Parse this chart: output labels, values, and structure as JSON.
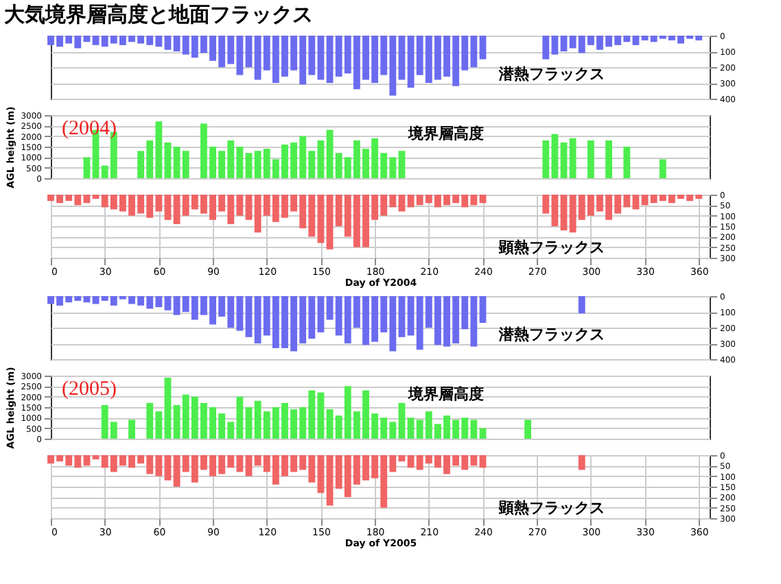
{
  "chart_data": [
    {
      "type": "bar",
      "title": "大気境界層高度と地面フラックス",
      "tick_labels": "y2",
      "grid": true,
      "x": [
        0,
        5,
        10,
        15,
        20,
        25,
        30,
        35,
        40,
        45,
        50,
        55,
        60,
        65,
        70,
        75,
        80,
        85,
        90,
        95,
        100,
        105,
        110,
        115,
        120,
        125,
        130,
        135,
        140,
        145,
        150,
        155,
        160,
        165,
        170,
        175,
        180,
        185,
        190,
        195,
        200,
        205,
        210,
        215,
        220,
        225,
        230,
        235,
        240,
        245,
        250,
        255,
        260,
        265,
        270,
        275,
        280,
        285,
        290,
        295,
        300,
        305,
        310,
        315,
        320,
        325,
        330,
        335,
        340,
        345,
        350,
        355,
        360
      ],
      "xlim": [
        0,
        366
      ],
      "y2lim": [
        400,
        0
      ],
      "y2ticks": [
        0,
        100,
        200,
        300,
        400
      ],
      "series": [
        {
          "name": "潜熱フラックス",
          "axis": "y2",
          "color": "#6b6bf0",
          "values": [
            60,
            70,
            50,
            80,
            40,
            60,
            70,
            50,
            60,
            40,
            50,
            60,
            70,
            90,
            100,
            120,
            140,
            110,
            160,
            200,
            180,
            250,
            200,
            280,
            220,
            300,
            260,
            220,
            310,
            250,
            280,
            300,
            260,
            240,
            340,
            280,
            300,
            250,
            380,
            280,
            330,
            250,
            300,
            280,
            260,
            320,
            220,
            200,
            150,
            null,
            null,
            null,
            null,
            null,
            null,
            150,
            120,
            100,
            80,
            110,
            60,
            90,
            70,
            60,
            40,
            60,
            30,
            40,
            20,
            30,
            50,
            20,
            30
          ]
        }
      ]
    },
    {
      "type": "bar",
      "ylabel": "AGL height (m)",
      "annotations": [
        "(2004)"
      ],
      "tick_labels": "y",
      "grid": true,
      "x": [
        20,
        25,
        30,
        35,
        40,
        45,
        50,
        55,
        60,
        65,
        70,
        75,
        80,
        85,
        90,
        95,
        100,
        105,
        110,
        115,
        120,
        125,
        130,
        135,
        140,
        145,
        150,
        155,
        160,
        165,
        170,
        175,
        180,
        185,
        190,
        195,
        200,
        205,
        210,
        215,
        220,
        225,
        230,
        235,
        240,
        245,
        250,
        255,
        260,
        265,
        270,
        275,
        280,
        285,
        290,
        295,
        300,
        305,
        310,
        315,
        320,
        325,
        330,
        335,
        340
      ],
      "xlim": [
        0,
        366
      ],
      "ylim": [
        0,
        3000
      ],
      "yticks": [
        0,
        500,
        1000,
        1500,
        2000,
        2500,
        3000
      ],
      "series": [
        {
          "name": "境界層高度",
          "axis": "y",
          "color": "#4ded4d",
          "values": [
            1000,
            2300,
            600,
            2200,
            null,
            null,
            1300,
            1800,
            2700,
            1700,
            1500,
            1300,
            null,
            2600,
            1500,
            1300,
            1800,
            1500,
            1200,
            1300,
            1400,
            900,
            1600,
            1700,
            2000,
            1300,
            1800,
            2300,
            1200,
            1000,
            1800,
            1400,
            1900,
            1200,
            1000,
            1300,
            null,
            null,
            null,
            null,
            null,
            null,
            null,
            null,
            null,
            null,
            null,
            null,
            null,
            null,
            null,
            1800,
            2100,
            1700,
            1900,
            null,
            1800,
            null,
            1800,
            null,
            1500,
            null,
            null,
            null,
            900
          ]
        }
      ]
    },
    {
      "type": "bar",
      "xlabel": "Day of Y2004",
      "grid": true,
      "x": [
        0,
        5,
        10,
        15,
        20,
        25,
        30,
        35,
        40,
        45,
        50,
        55,
        60,
        65,
        70,
        75,
        80,
        85,
        90,
        95,
        100,
        105,
        110,
        115,
        120,
        125,
        130,
        135,
        140,
        145,
        150,
        155,
        160,
        165,
        170,
        175,
        180,
        185,
        190,
        195,
        200,
        205,
        210,
        215,
        220,
        225,
        230,
        235,
        240,
        245,
        250,
        255,
        260,
        265,
        270,
        275,
        280,
        285,
        290,
        295,
        300,
        305,
        310,
        315,
        320,
        325,
        330,
        335,
        340,
        345,
        350,
        355,
        360
      ],
      "xlim": [
        0,
        366
      ],
      "xticks": [
        0,
        30,
        60,
        90,
        120,
        150,
        180,
        210,
        240,
        270,
        300,
        330,
        360
      ],
      "y2lim": [
        300,
        0
      ],
      "y2ticks": [
        0,
        50,
        100,
        150,
        200,
        250,
        300
      ],
      "series": [
        {
          "name": "顕熱フラックス",
          "axis": "y2",
          "color": "#f06464",
          "values": [
            30,
            40,
            30,
            50,
            40,
            20,
            60,
            70,
            80,
            100,
            90,
            110,
            80,
            120,
            140,
            100,
            70,
            90,
            120,
            80,
            140,
            100,
            120,
            180,
            100,
            130,
            110,
            80,
            160,
            200,
            230,
            260,
            150,
            200,
            250,
            250,
            120,
            100,
            60,
            80,
            60,
            50,
            40,
            60,
            50,
            40,
            60,
            50,
            40,
            null,
            null,
            null,
            null,
            null,
            null,
            90,
            150,
            170,
            180,
            120,
            100,
            80,
            120,
            90,
            60,
            70,
            50,
            40,
            30,
            40,
            20,
            30,
            20
          ]
        }
      ]
    },
    {
      "type": "bar",
      "tick_labels": "y2",
      "grid": true,
      "x": [
        0,
        5,
        10,
        15,
        20,
        25,
        30,
        35,
        40,
        45,
        50,
        55,
        60,
        65,
        70,
        75,
        80,
        85,
        90,
        95,
        100,
        105,
        110,
        115,
        120,
        125,
        130,
        135,
        140,
        145,
        150,
        155,
        160,
        165,
        170,
        175,
        180,
        185,
        190,
        195,
        200,
        205,
        210,
        215,
        220,
        225,
        230,
        235,
        240,
        245,
        250,
        255,
        260,
        265,
        270,
        275,
        280,
        285,
        290,
        295
      ],
      "xlim": [
        0,
        366
      ],
      "y2lim": [
        400,
        0
      ],
      "y2ticks": [
        0,
        100,
        200,
        300,
        400
      ],
      "series": [
        {
          "name": "潜熱フラックス",
          "axis": "y2",
          "color": "#6b6bf0",
          "values": [
            50,
            60,
            40,
            30,
            40,
            50,
            30,
            60,
            20,
            50,
            60,
            80,
            70,
            90,
            120,
            100,
            150,
            120,
            180,
            130,
            200,
            220,
            260,
            300,
            250,
            330,
            330,
            350,
            300,
            270,
            230,
            150,
            250,
            300,
            200,
            310,
            290,
            230,
            350,
            260,
            250,
            340,
            200,
            310,
            320,
            300,
            210,
            320,
            170,
            null,
            null,
            null,
            null,
            null,
            null,
            null,
            null,
            null,
            null,
            110
          ]
        }
      ]
    },
    {
      "type": "bar",
      "ylabel": "AGL height (m)",
      "annotations": [
        "(2005)"
      ],
      "tick_labels": "y",
      "grid": true,
      "x": [
        30,
        35,
        40,
        45,
        50,
        55,
        60,
        65,
        70,
        75,
        80,
        85,
        90,
        95,
        100,
        105,
        110,
        115,
        120,
        125,
        130,
        135,
        140,
        145,
        150,
        155,
        160,
        165,
        170,
        175,
        180,
        185,
        190,
        195,
        200,
        205,
        210,
        215,
        220,
        225,
        230,
        235,
        240,
        245,
        250,
        255,
        260,
        265
      ],
      "xlim": [
        0,
        366
      ],
      "ylim": [
        0,
        3000
      ],
      "yticks": [
        0,
        500,
        1000,
        1500,
        2000,
        2500,
        3000
      ],
      "series": [
        {
          "name": "境界層高度",
          "axis": "y",
          "color": "#4ded4d",
          "values": [
            1600,
            800,
            null,
            900,
            null,
            1700,
            1300,
            2900,
            1600,
            2100,
            2000,
            1700,
            1500,
            1200,
            800,
            2000,
            1500,
            1800,
            1300,
            1500,
            1700,
            1400,
            1500,
            2300,
            2200,
            1400,
            1100,
            2500,
            1300,
            2300,
            1200,
            1000,
            800,
            1700,
            1000,
            900,
            1300,
            700,
            1100,
            900,
            1000,
            900,
            500,
            null,
            null,
            null,
            null,
            900
          ]
        }
      ]
    },
    {
      "type": "bar",
      "xlabel": "Day of Y2005",
      "grid": true,
      "x": [
        0,
        5,
        10,
        15,
        20,
        25,
        30,
        35,
        40,
        45,
        50,
        55,
        60,
        65,
        70,
        75,
        80,
        85,
        90,
        95,
        100,
        105,
        110,
        115,
        120,
        125,
        130,
        135,
        140,
        145,
        150,
        155,
        160,
        165,
        170,
        175,
        180,
        185,
        190,
        195,
        200,
        205,
        210,
        215,
        220,
        225,
        230,
        235,
        240,
        245,
        250,
        255,
        260,
        265,
        270,
        275,
        280,
        285,
        290,
        295
      ],
      "xlim": [
        0,
        366
      ],
      "xticks": [
        0,
        30,
        60,
        90,
        120,
        150,
        180,
        210,
        240,
        270,
        300,
        330,
        360
      ],
      "y2lim": [
        300,
        0
      ],
      "y2ticks": [
        0,
        50,
        100,
        150,
        200,
        250,
        300
      ],
      "series": [
        {
          "name": "顕熱フラックス",
          "axis": "y2",
          "color": "#f06464",
          "values": [
            40,
            30,
            50,
            60,
            50,
            20,
            60,
            80,
            50,
            60,
            40,
            90,
            100,
            120,
            150,
            80,
            130,
            70,
            100,
            90,
            60,
            80,
            100,
            50,
            80,
            140,
            100,
            80,
            70,
            130,
            180,
            240,
            160,
            200,
            140,
            120,
            110,
            250,
            80,
            30,
            60,
            70,
            40,
            60,
            90,
            50,
            70,
            50,
            60,
            null,
            null,
            null,
            null,
            null,
            null,
            null,
            null,
            null,
            null,
            70
          ]
        }
      ]
    }
  ]
}
